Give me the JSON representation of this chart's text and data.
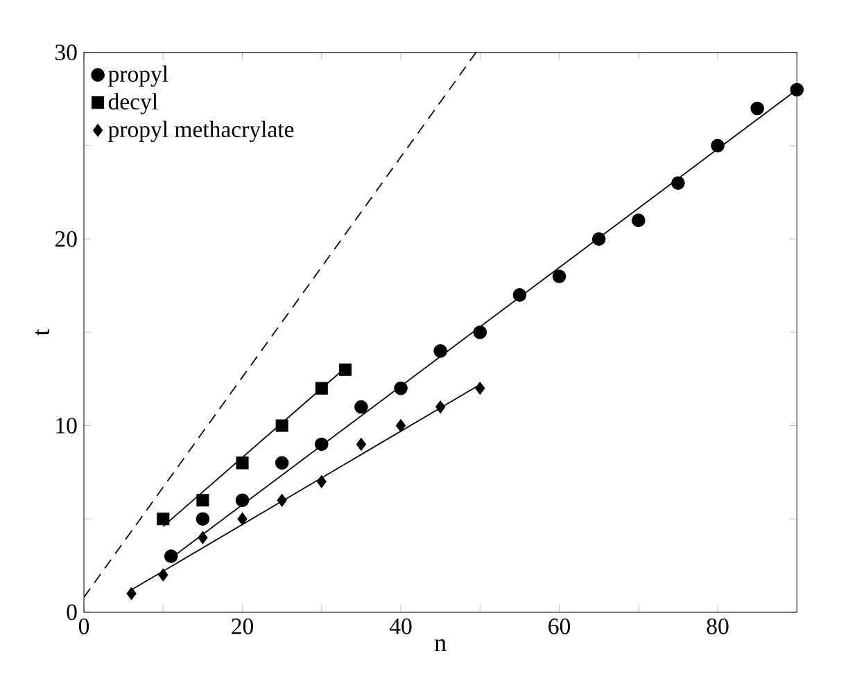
{
  "chart_data": {
    "type": "scatter",
    "xlabel": "n",
    "ylabel": "t",
    "xlim": [
      0,
      90
    ],
    "ylim": [
      0,
      30
    ],
    "xticks": [
      0,
      {
        "value": 10,
        "label": null
      },
      20,
      {
        "value": 30,
        "label": null
      },
      40,
      {
        "value": 50,
        "label": null
      },
      60,
      {
        "value": 70,
        "label": null
      },
      80,
      {
        "value": 90,
        "label": null
      }
    ],
    "yticks": [
      0,
      {
        "value": 5,
        "label": null
      },
      10,
      {
        "value": 15,
        "label": null
      },
      20,
      {
        "value": 25,
        "label": null
      },
      30
    ],
    "grid": false,
    "legend": "top left",
    "series": [
      {
        "name": "propyl",
        "color": "#000000",
        "marker": "circle",
        "x": [
          11,
          15,
          20,
          25,
          30,
          35,
          40,
          45,
          50,
          55,
          60,
          65,
          70,
          75,
          80,
          85,
          90
        ],
        "values": [
          3,
          5,
          6,
          8,
          9,
          11,
          12,
          14,
          15,
          17,
          18,
          20,
          21,
          23,
          25,
          27,
          28
        ]
      },
      {
        "name": "decyl",
        "color": "#000000",
        "marker": "square",
        "x": [
          10,
          15,
          20,
          25,
          30,
          33
        ],
        "values": [
          5,
          6,
          8,
          10,
          12,
          13
        ]
      },
      {
        "name": "propyl methacrylate",
        "color": "#000000",
        "marker": "diamond",
        "x": [
          6,
          10,
          15,
          20,
          25,
          30,
          35,
          40,
          45,
          50
        ],
        "values": [
          1,
          2,
          4,
          5,
          6,
          7,
          9,
          10,
          11,
          12
        ]
      },
      {
        "type": "line",
        "color": "#000000",
        "line_style": "solid",
        "x": [
          11,
          90
        ],
        "values": [
          2.9,
          28
        ]
      },
      {
        "type": "line",
        "color": "#000000",
        "line_style": "solid",
        "x": [
          10,
          33
        ],
        "values": [
          4.6,
          13.1
        ]
      },
      {
        "type": "line",
        "color": "#000000",
        "line_style": "solid",
        "x": [
          6,
          50
        ],
        "values": [
          1.2,
          12.2
        ]
      },
      {
        "type": "line",
        "color": "#000000",
        "line_style": "dashed",
        "x": [
          0,
          49.5
        ],
        "values": [
          0.8,
          30
        ]
      }
    ]
  }
}
